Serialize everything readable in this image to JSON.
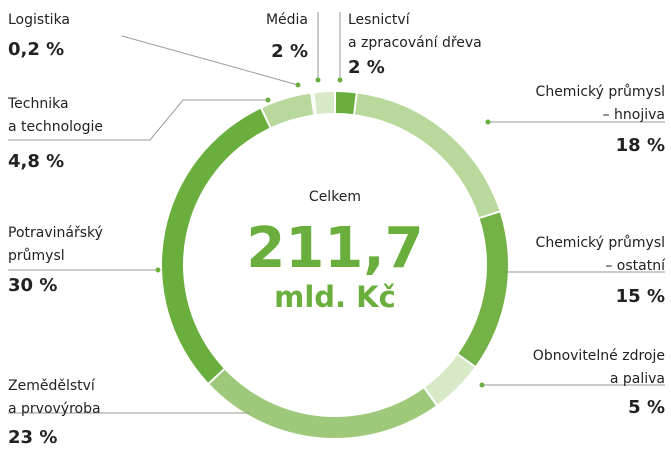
{
  "chart_data": {
    "type": "donut",
    "labels": [
      [
        "Lesnictví",
        "a zpracování dřeva"
      ],
      [
        "Chemický průmysl",
        "– hnojiva"
      ],
      [
        "Chemický průmysl",
        "– ostatní"
      ],
      [
        "Obnovitelné zdroje",
        "a paliva"
      ],
      [
        "Zemědělství",
        "a prvovýroba"
      ],
      [
        "Potravinářský",
        "průmysl"
      ],
      [
        "Technika",
        "a technologie"
      ],
      [
        "Logistika"
      ],
      [
        "Média"
      ]
    ],
    "values": [
      2,
      18,
      15,
      5,
      23,
      30,
      4.8,
      0.2,
      2
    ],
    "value_labels": [
      "2 %",
      "18 %",
      "15 %",
      "5 %",
      "23 %",
      "30 %",
      "4,8 %",
      "0,2 %",
      "2 %"
    ],
    "colors": [
      "#6aaf3d",
      "#b9d89c",
      "#74b146",
      "#d7e9c6",
      "#9ec97b",
      "#6aaf3d",
      "#b9d89c",
      "#6aaf3d",
      "#d7e9c6"
    ],
    "center_caption": "Celkem",
    "center_value": "211,7",
    "center_unit": "mld. Kč"
  }
}
